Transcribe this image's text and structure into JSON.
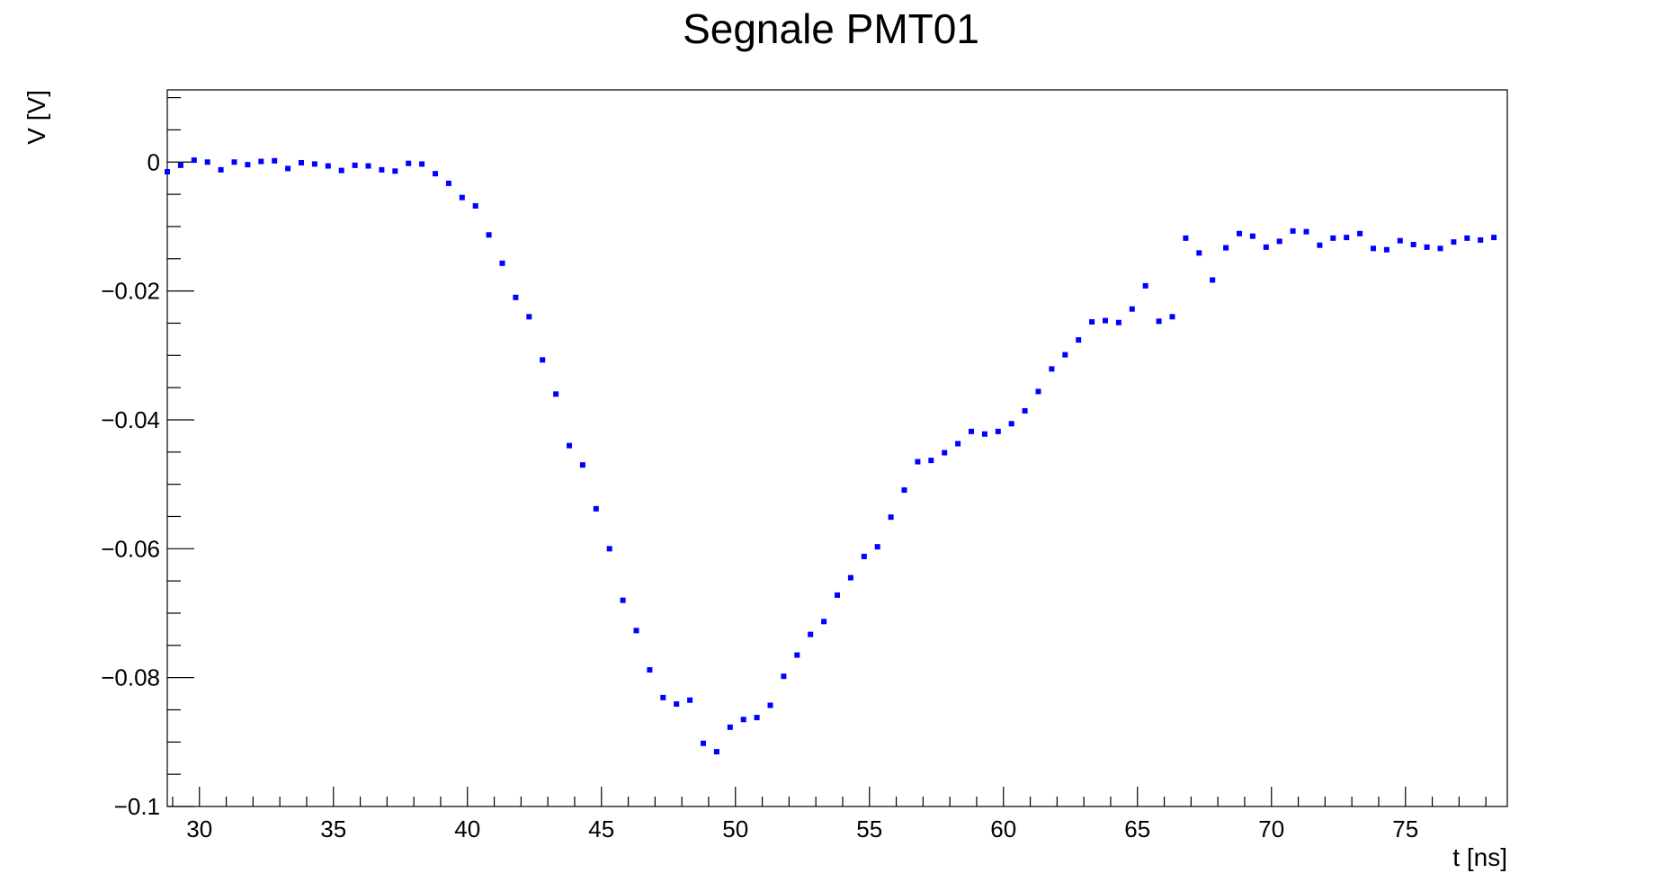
{
  "chart_data": {
    "type": "scatter",
    "title": "Segnale PMT01",
    "xlabel": "t [ns]",
    "ylabel": "V [V]",
    "xlim": [
      28.8,
      78.8
    ],
    "ylim": [
      -0.1,
      0.0112
    ],
    "x_ticks": [
      30,
      35,
      40,
      45,
      50,
      55,
      60,
      65,
      70,
      75
    ],
    "x_tick_labels": [
      "30",
      "35",
      "40",
      "45",
      "50",
      "55",
      "60",
      "65",
      "70",
      "75"
    ],
    "y_ticks": [
      0,
      -0.02,
      -0.04,
      -0.06,
      -0.08,
      -0.1
    ],
    "y_tick_labels": [
      "0",
      "−0.02",
      "−0.04",
      "−0.06",
      "−0.08",
      "−0.1"
    ],
    "grid": false,
    "colors": {
      "marker": "#0000ff",
      "axis": "#000000"
    },
    "series": [
      {
        "x": [
          28.8,
          29.3,
          29.8,
          30.3,
          30.8,
          31.3,
          31.8,
          32.3,
          32.8,
          33.3,
          33.8,
          34.3,
          34.8,
          35.3,
          35.8,
          36.3,
          36.8,
          37.3,
          37.8,
          38.3,
          38.8,
          39.3,
          39.8,
          40.3,
          40.8,
          41.3,
          41.8,
          42.3,
          42.8,
          43.3,
          43.8,
          44.3,
          44.8,
          45.3,
          45.8,
          46.3,
          46.8,
          47.3,
          47.8,
          48.3,
          48.8,
          49.3,
          49.8,
          50.3,
          50.8,
          51.3,
          51.8,
          52.3,
          52.8,
          53.3,
          53.8,
          54.3,
          54.8,
          55.3,
          55.8,
          56.3,
          56.8,
          57.3,
          57.8,
          58.3,
          58.8,
          59.3,
          59.8,
          60.3,
          60.8,
          61.3,
          61.8,
          62.3,
          62.8,
          63.3,
          63.8,
          64.3,
          64.8,
          65.3,
          65.8,
          66.3,
          66.8,
          67.3,
          67.8,
          68.3,
          68.8,
          69.3,
          69.8,
          70.3,
          70.8,
          71.3,
          71.8,
          72.3,
          72.8,
          73.3,
          73.8,
          74.3,
          74.8,
          75.3,
          75.8,
          76.3,
          76.8,
          77.3,
          77.8,
          78.3
        ],
        "y": [
          -0.0015,
          -0.0005,
          0.0003,
          0.0,
          -0.0012,
          0.0,
          -0.0004,
          0.0001,
          0.0002,
          -0.001,
          -0.0001,
          -0.0003,
          -0.0006,
          -0.0013,
          -0.0005,
          -0.0006,
          -0.0012,
          -0.0014,
          -0.0002,
          -0.0003,
          -0.0018,
          -0.0033,
          -0.0055,
          -0.0068,
          -0.0113,
          -0.0157,
          -0.021,
          -0.024,
          -0.0307,
          -0.036,
          -0.044,
          -0.047,
          -0.0538,
          -0.06,
          -0.068,
          -0.0727,
          -0.0788,
          -0.0831,
          -0.0841,
          -0.0835,
          -0.0902,
          -0.0915,
          -0.0877,
          -0.0865,
          -0.0862,
          -0.0843,
          -0.0798,
          -0.0765,
          -0.0733,
          -0.0713,
          -0.0672,
          -0.0645,
          -0.0612,
          -0.0597,
          -0.0551,
          -0.0509,
          -0.0465,
          -0.0463,
          -0.0451,
          -0.0437,
          -0.0418,
          -0.0422,
          -0.0418,
          -0.0406,
          -0.0386,
          -0.0356,
          -0.0321,
          -0.0299,
          -0.0276,
          -0.0248,
          -0.0246,
          -0.0249,
          -0.0228,
          -0.0192,
          -0.0247,
          -0.024,
          -0.0118,
          -0.0141,
          -0.0183,
          -0.0133,
          -0.0111,
          -0.0115,
          -0.0132,
          -0.0123,
          -0.0107,
          -0.0108,
          -0.0129,
          -0.0118,
          -0.0117,
          -0.0111,
          -0.0134,
          -0.0136,
          -0.0122,
          -0.0128,
          -0.0132,
          -0.0134,
          -0.0124,
          -0.0118,
          -0.0121,
          -0.0117
        ]
      }
    ]
  }
}
